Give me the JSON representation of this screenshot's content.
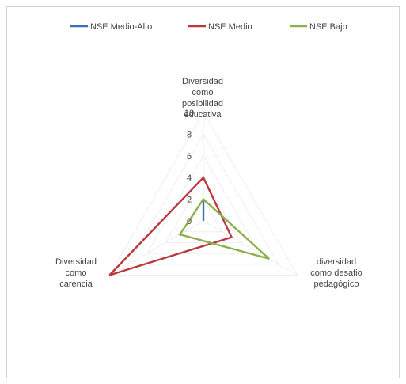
{
  "chart_data": {
    "type": "radar",
    "axes": [
      [
        "Diversidad",
        "como",
        "posibilidad",
        "educativa"
      ],
      [
        "diversidad",
        "como desafio",
        "pedagógico"
      ],
      [
        "Diversidad",
        "como",
        "carencia"
      ]
    ],
    "rlim": [
      0,
      10
    ],
    "ticks": [
      "0",
      "2",
      "4",
      "6",
      "8",
      "10"
    ],
    "tick_values": [
      0,
      2,
      4,
      6,
      8,
      10
    ],
    "legend_position": "top",
    "series": [
      {
        "name": "NSE Medio-Alto",
        "color": "#3f6fb4",
        "values": [
          2,
          0,
          0
        ]
      },
      {
        "name": "NSE Medio",
        "color": "#b8393e",
        "values": [
          4,
          3,
          10
        ]
      },
      {
        "name": "NSE Bajo",
        "color": "#8cb14a",
        "values": [
          2,
          7,
          2.5
        ]
      }
    ]
  }
}
